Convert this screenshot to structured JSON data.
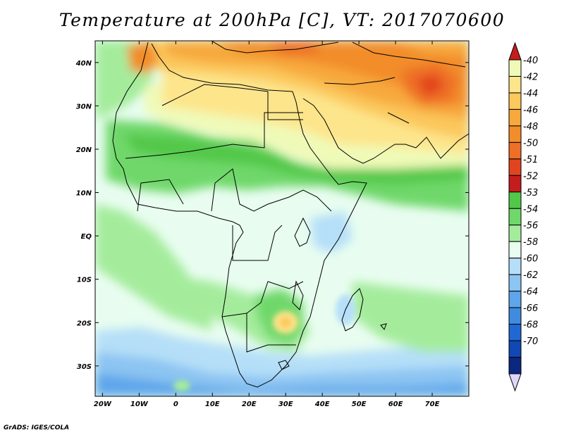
{
  "title": "Temperature at 200hPa [C], VT: 2017070600",
  "credit": "GrADS: IGES/COLA",
  "map": {
    "lat_ticks": [
      "40N",
      "30N",
      "20N",
      "10N",
      "EQ",
      "10S",
      "20S",
      "30S"
    ],
    "lon_ticks": [
      "20W",
      "10W",
      "0",
      "10E",
      "20E",
      "30E",
      "40E",
      "50E",
      "60E",
      "70E"
    ],
    "lat_values": [
      40,
      30,
      20,
      10,
      0,
      -10,
      -20,
      -30
    ],
    "lon_values": [
      -20,
      -10,
      0,
      10,
      20,
      30,
      40,
      50,
      60,
      70
    ],
    "lon_range": [
      -22,
      80
    ],
    "lat_range": [
      -37,
      45
    ]
  },
  "colorbar": {
    "labels": [
      "-40",
      "-42",
      "-44",
      "-46",
      "-48",
      "-50",
      "-51",
      "-52",
      "-53",
      "-54",
      "-56",
      "-58",
      "-60",
      "-62",
      "-64",
      "-66",
      "-68",
      "-70"
    ],
    "colors": [
      "#f0fab8",
      "#fde58b",
      "#fbc85c",
      "#f7a93c",
      "#f28d2b",
      "#ee6f26",
      "#e2441f",
      "#c51d1d",
      "#52c84a",
      "#6fd86a",
      "#a4ec9c",
      "#e8fdf0",
      "#b5dff8",
      "#8cc4f2",
      "#5ea6ea",
      "#3f8be0",
      "#2069d4",
      "#1148b5",
      "#0b2780"
    ],
    "top_color": "#c51d1d",
    "bottom_color": "#ddd8fb"
  }
}
